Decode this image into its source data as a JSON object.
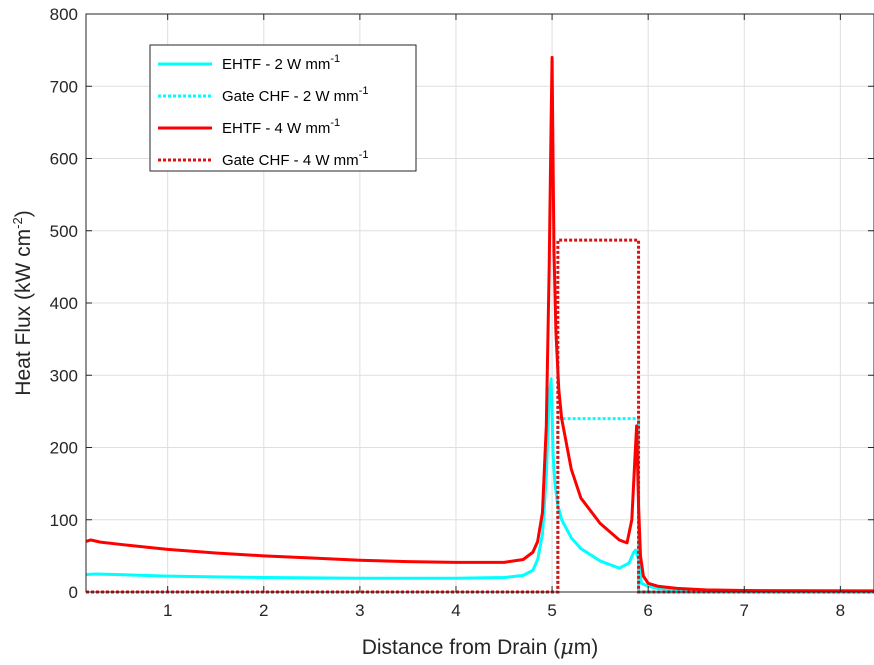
{
  "chart_data": {
    "type": "line",
    "xlabel": {
      "main": "Distance from Drain (",
      "mu": "μ",
      "unit": "m)"
    },
    "ylabel": {
      "main": "Heat Flux (kW cm",
      "sup": "-2",
      "end": ")"
    },
    "xlim": [
      0.15,
      8.35
    ],
    "ylim": [
      0,
      800
    ],
    "xticks": [
      1,
      2,
      3,
      4,
      5,
      6,
      7,
      8
    ],
    "yticks": [
      0,
      100,
      200,
      300,
      400,
      500,
      600,
      700,
      800
    ],
    "grid": true,
    "legend_position": "top-left",
    "series": [
      {
        "name": "EHTF - 2 W mm",
        "name_sup": "-1",
        "color": "#00FFFF",
        "style": "solid",
        "x": [
          0.15,
          0.25,
          0.5,
          1,
          1.5,
          2,
          2.5,
          3,
          3.5,
          4,
          4.5,
          4.7,
          4.8,
          4.85,
          4.9,
          4.94,
          4.97,
          4.99,
          5.0,
          5.01,
          5.03,
          5.06,
          5.1,
          5.2,
          5.3,
          5.5,
          5.7,
          5.8,
          5.85,
          5.87,
          5.9,
          5.93,
          6.0,
          6.1,
          6.3,
          6.6,
          7,
          8.35
        ],
        "y": [
          24,
          25,
          24,
          22,
          21,
          20,
          19.5,
          19,
          19,
          19,
          20,
          23,
          30,
          45,
          80,
          160,
          270,
          295,
          250,
          190,
          150,
          120,
          100,
          75,
          60,
          43,
          33,
          40,
          55,
          58,
          45,
          12,
          8,
          5,
          3,
          2,
          1.5,
          1
        ]
      },
      {
        "name": "Gate CHF - 2 W mm",
        "name_sup": "-1",
        "color": "#00FFFF",
        "style": "dotted",
        "x": [
          0.15,
          5.06,
          5.06,
          5.9,
          5.9,
          8.35
        ],
        "y": [
          0,
          0,
          240,
          240,
          0,
          0
        ]
      },
      {
        "name": "EHTF - 4 W mm",
        "name_sup": "-1",
        "color": "#FF0000",
        "style": "solid",
        "x": [
          0.15,
          0.2,
          0.3,
          0.5,
          1,
          1.5,
          2,
          2.5,
          3,
          3.5,
          4,
          4.5,
          4.7,
          4.8,
          4.85,
          4.9,
          4.94,
          4.97,
          4.99,
          5.0,
          5.01,
          5.02,
          5.04,
          5.07,
          5.1,
          5.2,
          5.3,
          5.5,
          5.7,
          5.78,
          5.83,
          5.86,
          5.88,
          5.9,
          5.92,
          5.95,
          6.0,
          6.1,
          6.3,
          6.6,
          7,
          8.35
        ],
        "y": [
          70,
          72,
          69,
          66,
          59,
          54,
          50,
          47,
          44,
          42,
          41,
          41,
          45,
          55,
          70,
          110,
          230,
          450,
          650,
          740,
          600,
          470,
          360,
          280,
          240,
          170,
          130,
          95,
          72,
          68,
          100,
          180,
          230,
          120,
          50,
          22,
          12,
          8,
          5,
          3,
          2,
          1.5
        ]
      },
      {
        "name": "Gate CHF - 4 W mm",
        "name_sup": "-1",
        "color": "#DD1111",
        "style": "dotted",
        "x": [
          0.15,
          5.06,
          5.06,
          5.9,
          5.9,
          8.35
        ],
        "y": [
          0,
          0,
          487,
          487,
          0,
          0
        ]
      }
    ]
  }
}
